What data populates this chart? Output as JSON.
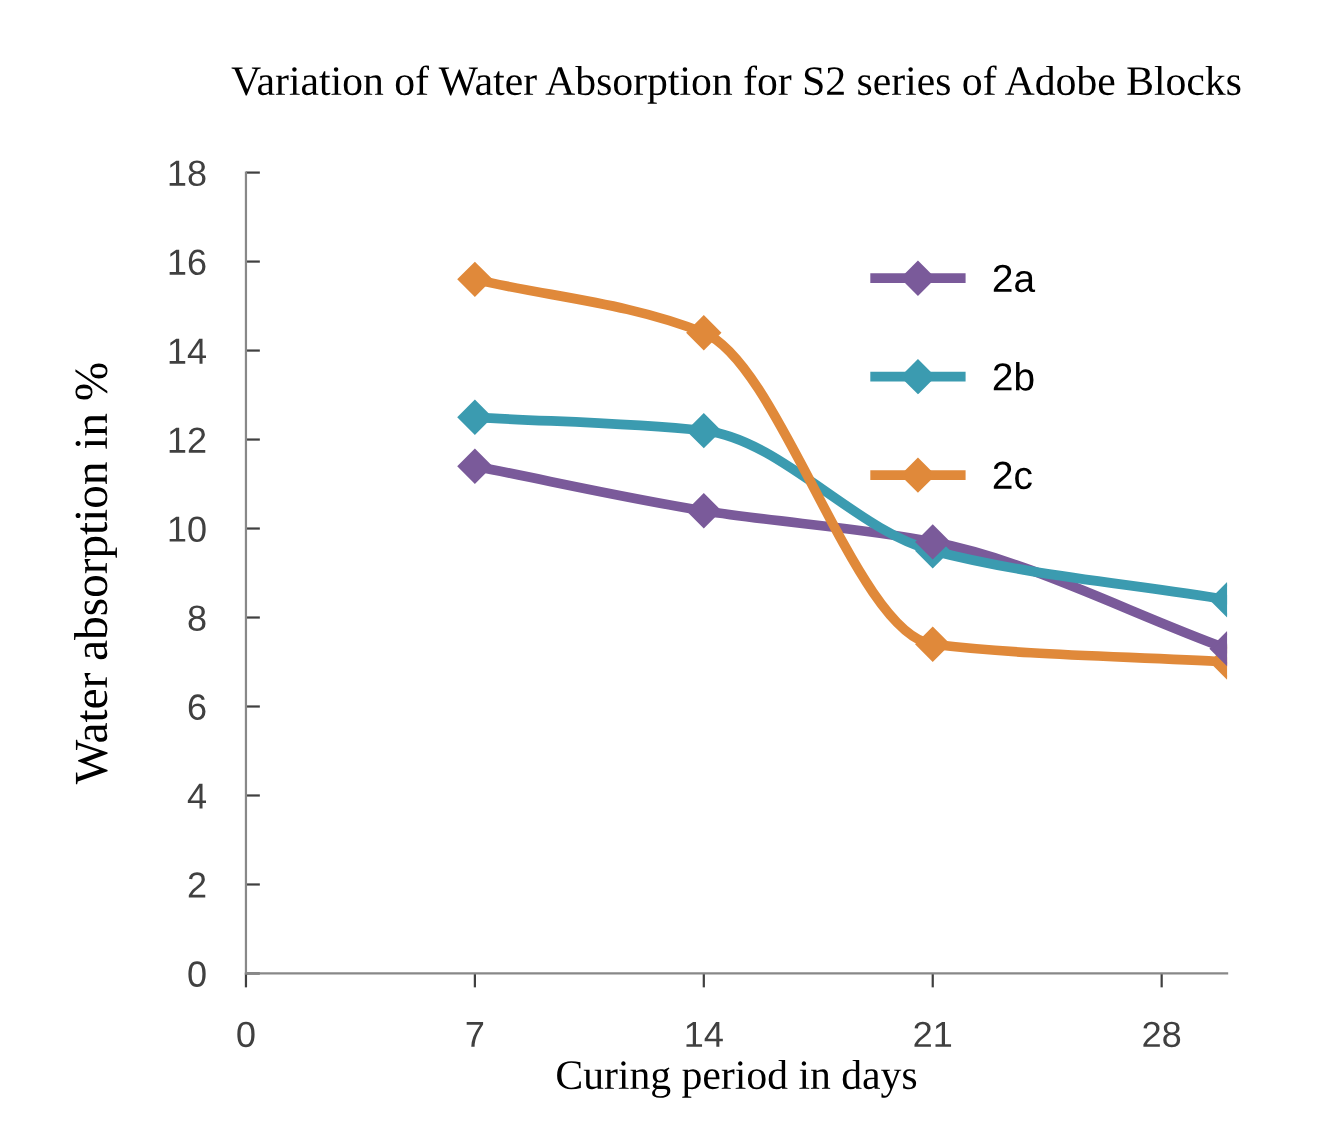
{
  "chart_data": {
    "type": "line",
    "title": "Variation of Water Absorption for S2 series of Adobe Blocks",
    "xlabel": "Curing period in days",
    "ylabel": "Water absorption in %",
    "x": [
      7,
      14,
      21,
      30
    ],
    "series": [
      {
        "name": "2a",
        "color": "#7a5a9a",
        "values": [
          11.4,
          10.4,
          9.7,
          7.3
        ]
      },
      {
        "name": "2b",
        "color": "#3b9bb0",
        "values": [
          12.5,
          12.2,
          9.5,
          8.4
        ]
      },
      {
        "name": "2c",
        "color": "#e0893a",
        "values": [
          15.6,
          14.4,
          7.4,
          7.0
        ]
      }
    ],
    "xlim": [
      0,
      30
    ],
    "xticks": [
      0,
      7,
      14,
      21,
      28
    ],
    "ylim": [
      0,
      18
    ],
    "yticks": [
      0,
      2,
      4,
      6,
      8,
      10,
      12,
      14,
      16,
      18
    ],
    "grid": false,
    "legend": "top right",
    "marker": "diamond",
    "line_style": "solid"
  }
}
